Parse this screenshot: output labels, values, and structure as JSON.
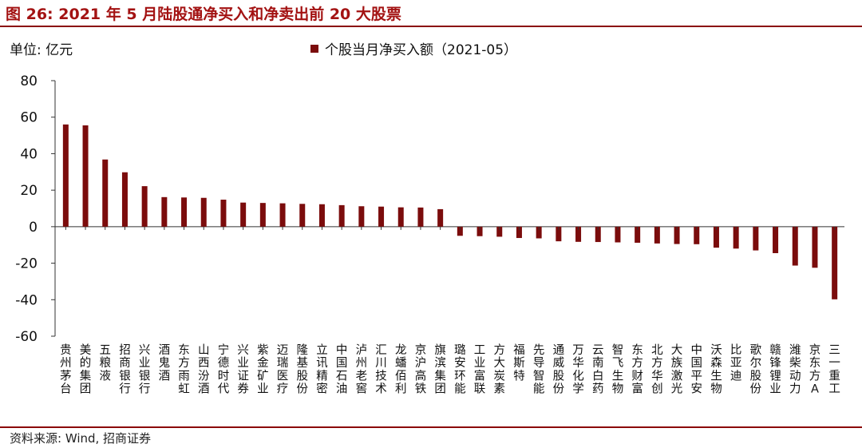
{
  "title": "图 26: 2021 年 5 月陆股通净买入和净卖出前 20 大股票",
  "unit_label": "单位: 亿元",
  "source": "资料来源: Wind, 招商证券",
  "colors": {
    "bar": "#7b0c0c",
    "title": "#a31212",
    "rule": "#8b0a0a"
  },
  "chart_data": {
    "type": "bar",
    "title": "",
    "xlabel": "",
    "ylabel": "",
    "ylim": [
      -60,
      80
    ],
    "yticks": [
      80,
      60,
      40,
      20,
      0,
      -20,
      -40,
      -60
    ],
    "grid": false,
    "legend_position": "top-center",
    "categories": [
      "贵州茅台",
      "美的集团",
      "五粮液",
      "招商银行",
      "兴业银行",
      "酒鬼酒",
      "东方雨虹",
      "山西汾酒",
      "宁德时代",
      "兴业证券",
      "紫金矿业",
      "迈瑞医疗",
      "隆基股份",
      "立讯精密",
      "中国石油",
      "泸州老窖",
      "汇川技术",
      "龙蟠佰利",
      "京沪高铁",
      "旗滨集团",
      "璐安环能",
      "工业富联",
      "方大炭素",
      "福斯特",
      "先导智能",
      "通威股份",
      "万华化学",
      "云南白药",
      "智飞生物",
      "东方财富",
      "北方华创",
      "大族激光",
      "中国平安",
      "沃森生物",
      "比亚迪",
      "歌尔股份",
      "赣锋锂业",
      "潍柴动力",
      "京东方A",
      "三一重工"
    ],
    "series": [
      {
        "name": "个股当月净买入额（2021-05）",
        "values": [
          56,
          55.5,
          36.8,
          29.8,
          22.2,
          16.2,
          16,
          15.8,
          14.8,
          13.2,
          13,
          12.8,
          12.5,
          12.3,
          11.8,
          11.2,
          11,
          10.6,
          10.5,
          9.6,
          -5,
          -5.2,
          -5.5,
          -6.2,
          -6.4,
          -8,
          -8.3,
          -8.4,
          -8.6,
          -8.8,
          -9.2,
          -9.5,
          -9.6,
          -11.5,
          -12,
          -13,
          -14.5,
          -21.3,
          -22.5,
          -39.8
        ]
      }
    ]
  }
}
